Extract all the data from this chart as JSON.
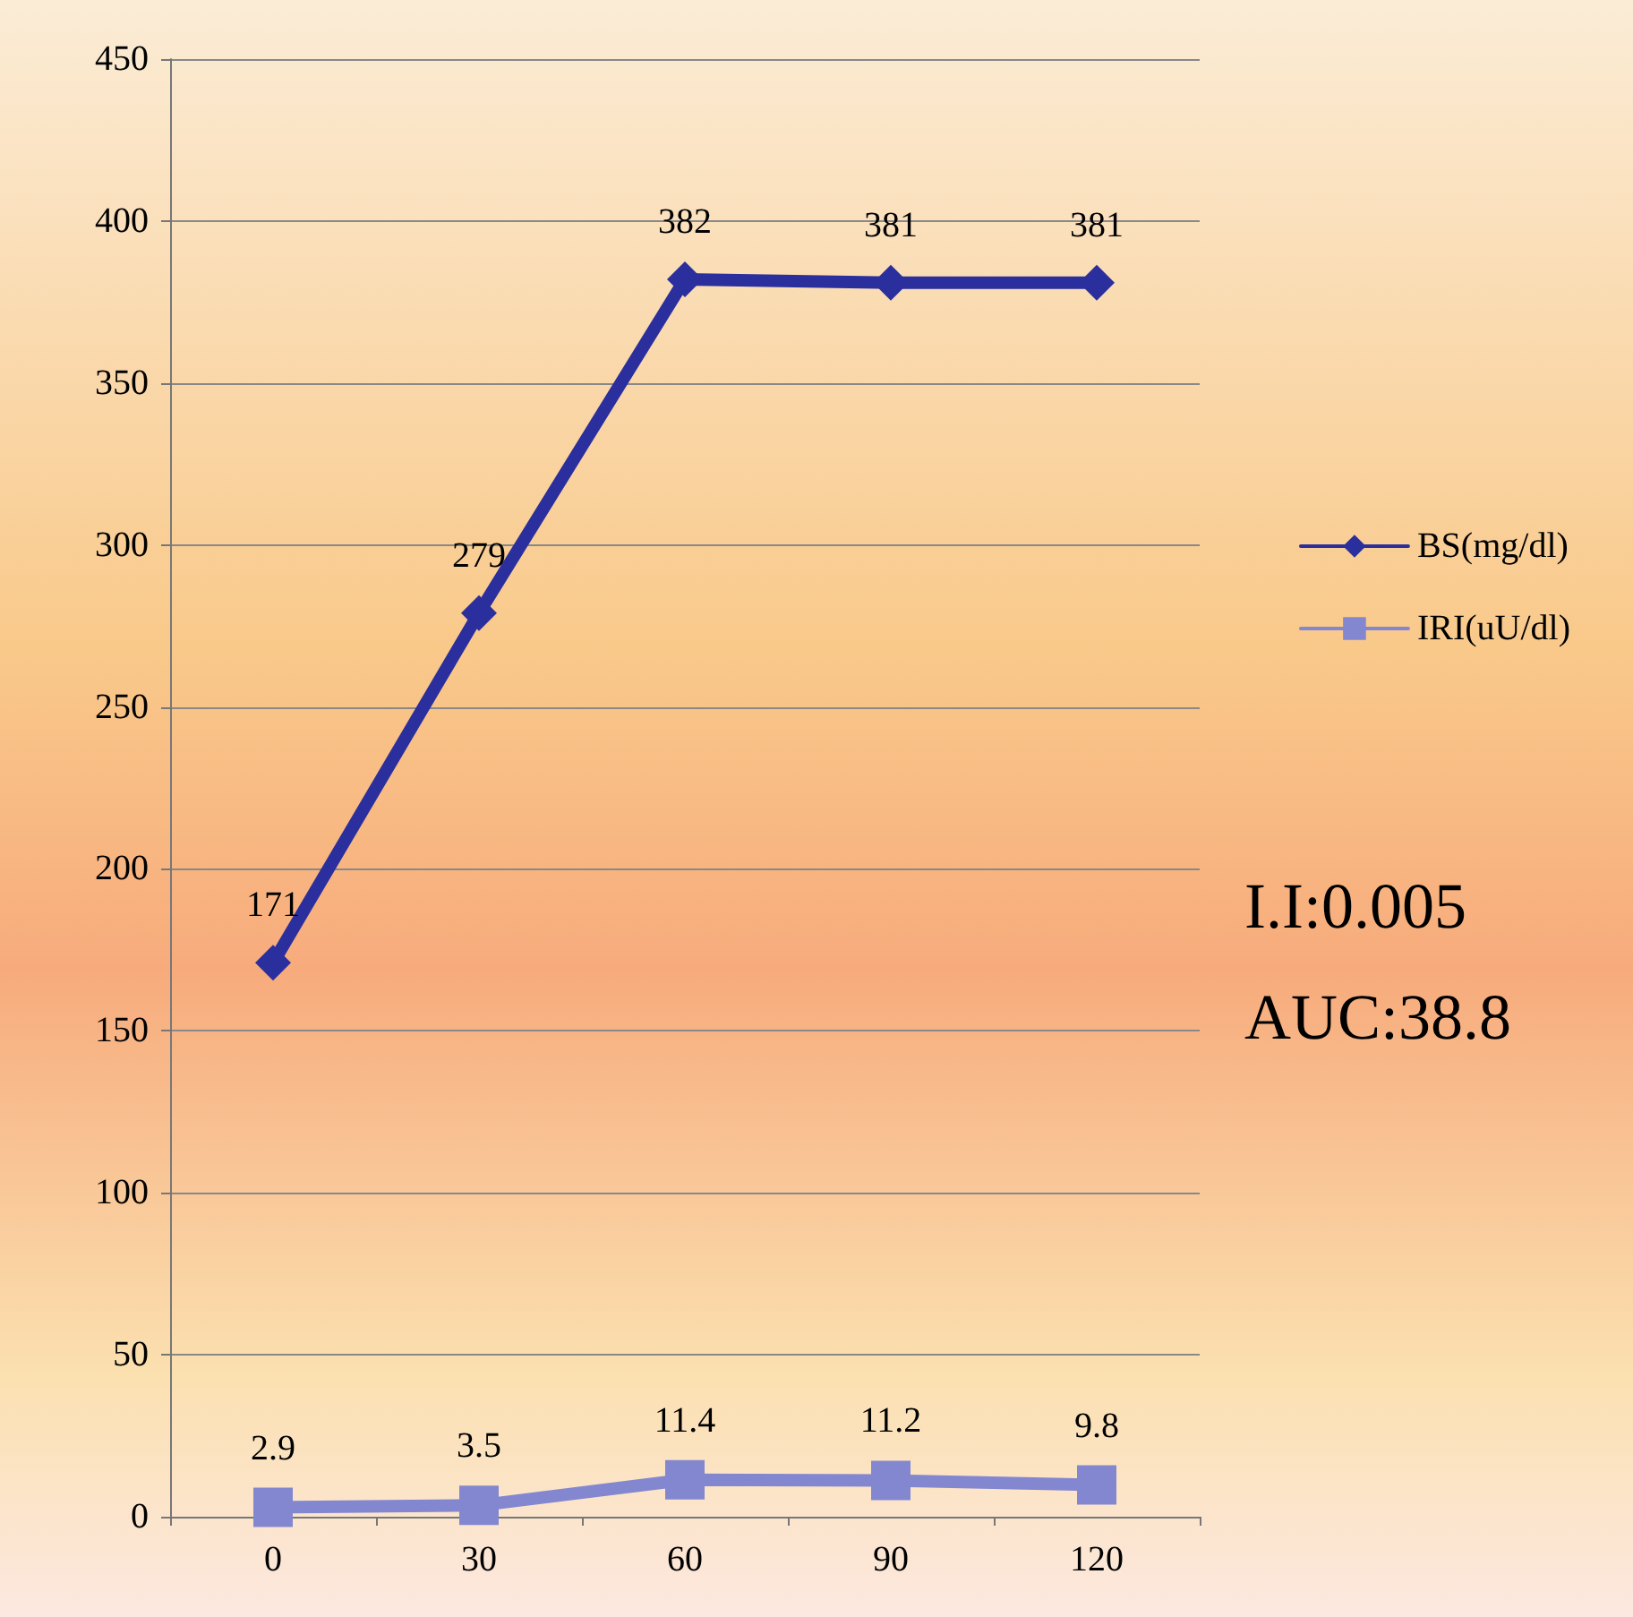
{
  "chart_data": {
    "type": "line",
    "categories": [
      "0",
      "30",
      "60",
      "90",
      "120"
    ],
    "series": [
      {
        "name": "BS(mg/dl)",
        "color": "#2b2f9e",
        "marker": "diamond",
        "values": [
          171,
          279,
          382,
          381,
          381
        ]
      },
      {
        "name": "IRI(uU/dl)",
        "color": "#8387d0",
        "marker": "square",
        "values": [
          2.9,
          3.5,
          11.4,
          11.2,
          9.8
        ]
      }
    ],
    "ylim": [
      0,
      450
    ],
    "yticks": [
      0,
      50,
      100,
      150,
      200,
      250,
      300,
      350,
      400,
      450
    ],
    "grid": "y",
    "legend": "right",
    "data_labels": true,
    "annotations": [
      "I.I:0.005",
      "AUC:38.8"
    ]
  }
}
